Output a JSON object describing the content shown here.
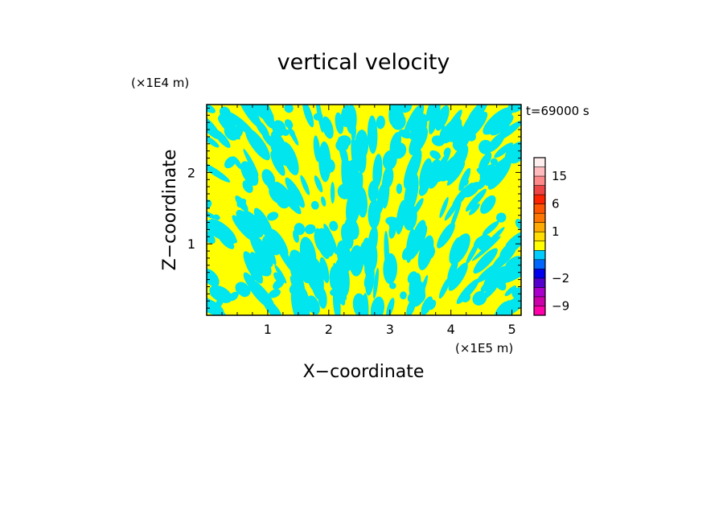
{
  "chart_data": {
    "type": "heatmap",
    "title": "vertical velocity",
    "xlabel": "X−coordinate",
    "ylabel": "Z−coordinate",
    "x_scale_label": "(×1E5 m)",
    "y_scale_label": "(×1E4 m)",
    "time_label": "t=69000 s",
    "xlim": [
      0,
      5.15
    ],
    "ylim": [
      0,
      2.95
    ],
    "x_ticks": [
      1,
      2,
      3,
      4,
      5
    ],
    "x_tick_labels": [
      "1",
      "2",
      "3",
      "4",
      "5"
    ],
    "y_ticks": [
      1,
      2
    ],
    "y_tick_labels": [
      "1",
      "2"
    ],
    "field_colors": {
      "positive": "#ffff00",
      "negative": "#00e5ee"
    },
    "colorbar": {
      "levels": [
        -12,
        -9,
        -6,
        -3,
        -2,
        -1,
        -0.5,
        0,
        0.5,
        1,
        2,
        3,
        6,
        9,
        12,
        15,
        18,
        24
      ],
      "colors": [
        "#ff00aa",
        "#cc00aa",
        "#aa00cc",
        "#5500cc",
        "#0000ee",
        "#0066ff",
        "#00ccff",
        "#ffff00",
        "#ffdd00",
        "#ffaa00",
        "#ff7700",
        "#ff5500",
        "#ff2200",
        "#ee4444",
        "#ff8888",
        "#ffbbbb",
        "#ffeeee"
      ],
      "tick_values": [
        -9,
        -2,
        1,
        6,
        15
      ],
      "tick_labels": [
        "−9",
        "−2",
        "1",
        "6",
        "15"
      ]
    }
  }
}
